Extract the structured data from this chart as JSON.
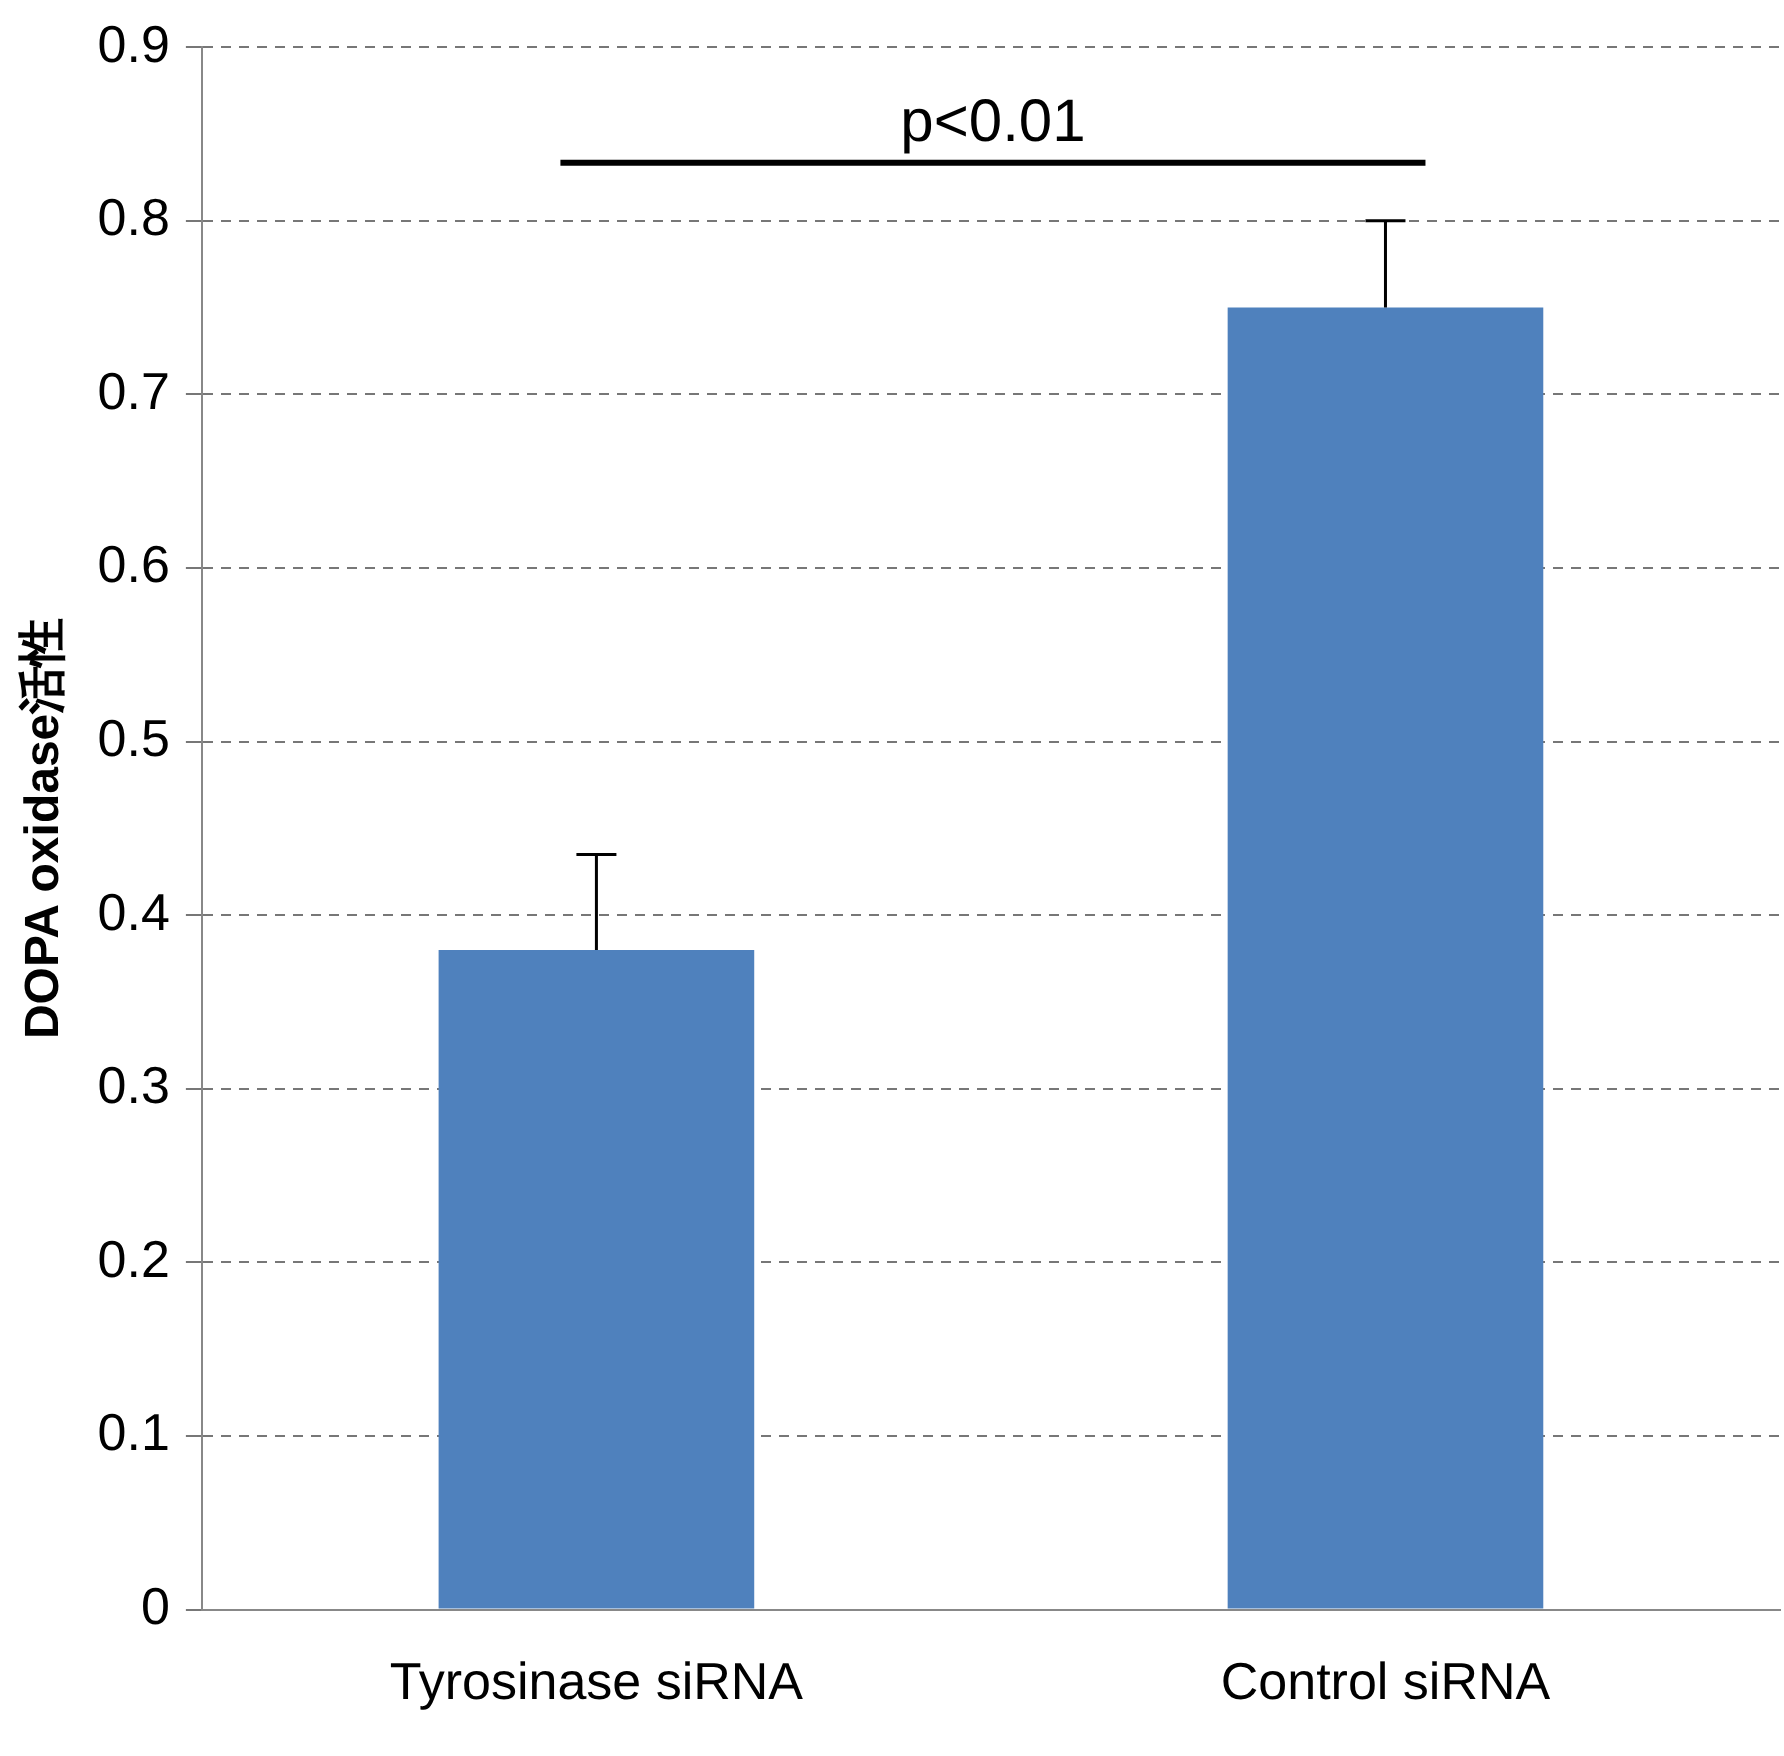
{
  "chart_data": {
    "type": "bar",
    "ylabel": "DOPA oxidase活性",
    "categories": [
      "Tyrosinase siRNA",
      "Control siRNA"
    ],
    "values": [
      0.38,
      0.75
    ],
    "color": "#4f81bd",
    "errors": [
      [
        0.38,
        0.435
      ],
      [
        0.75,
        0.8
      ]
    ],
    "ylim": [
      0,
      0.9
    ],
    "yticks": [
      0,
      0.1,
      0.2,
      0.3,
      0.4,
      0.5,
      0.6,
      0.7,
      0.8,
      0.9
    ],
    "grid": "y",
    "legend": false,
    "annotations": [
      "p<0.01"
    ]
  }
}
